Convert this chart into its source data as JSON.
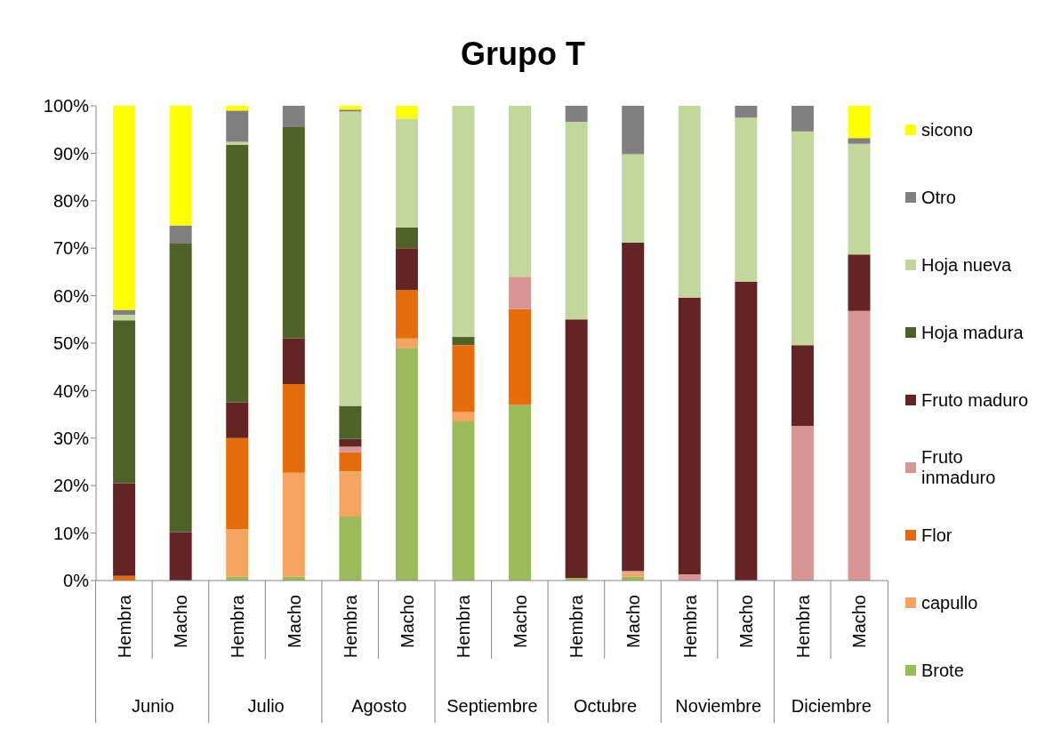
{
  "chart_data": {
    "type": "bar",
    "title": "Grupo T",
    "stacked": true,
    "legend": "right",
    "grid": false,
    "categories": [
      "Hembra",
      "Macho",
      "Hembra",
      "Macho",
      "Hembra",
      "Macho",
      "Hembra",
      "Macho",
      "Hembra",
      "Macho",
      "Hembra",
      "Macho",
      "Hembra",
      "Macho"
    ],
    "annotations": [
      "Junio",
      "Julio",
      "Agosto",
      "Septiembre",
      "Octubre",
      "Noviembre",
      "Diciembre"
    ],
    "ylim": [
      0,
      100
    ],
    "yticks": [
      {
        "value": 0,
        "label": "0%"
      },
      {
        "value": 10,
        "label": "10%"
      },
      {
        "value": 20,
        "label": "20%"
      },
      {
        "value": 30,
        "label": "30%"
      },
      {
        "value": 40,
        "label": "40%"
      },
      {
        "value": 50,
        "label": "50%"
      },
      {
        "value": 60,
        "label": "60%"
      },
      {
        "value": 70,
        "label": "70%"
      },
      {
        "value": 80,
        "label": "80%"
      },
      {
        "value": 90,
        "label": "90%"
      },
      {
        "value": 100,
        "label": "100%"
      }
    ],
    "series": [
      {
        "name": "Brote",
        "color": "#9bbb59",
        "values": [
          0,
          0,
          0.8,
          0.8,
          13.5,
          49,
          33.5,
          37,
          0.5,
          0.8,
          0,
          0,
          0,
          0
        ]
      },
      {
        "name": "capullo",
        "color": "#f4a460",
        "values": [
          0,
          0,
          10,
          21.9,
          9.5,
          2,
          2,
          0,
          0,
          0.8,
          0,
          0,
          0,
          0
        ]
      },
      {
        "name": "Flor",
        "color": "#e46c0a",
        "values": [
          1,
          0,
          19.2,
          18.7,
          4,
          10.2,
          14.1,
          20.2,
          0,
          0,
          0,
          0,
          0,
          0
        ]
      },
      {
        "name": "Fruto inmaduro",
        "color": "#d99594",
        "values": [
          0,
          0,
          0,
          0,
          1.2,
          0,
          0,
          6.8,
          0,
          0.4,
          1.3,
          0,
          32.6,
          56.8
        ]
      },
      {
        "name": "Fruto maduro",
        "color": "#632423",
        "values": [
          19.5,
          10.2,
          7.5,
          9.6,
          1.6,
          8.8,
          0,
          0,
          54.5,
          69.2,
          58.3,
          62.9,
          17,
          11.9
        ]
      },
      {
        "name": "Hoja madura",
        "color": "#4f6228",
        "values": [
          34.3,
          60.9,
          54.3,
          44.5,
          7,
          4.4,
          1.7,
          0,
          0,
          0,
          0,
          0,
          0,
          0
        ]
      },
      {
        "name": "Hoja nueva",
        "color": "#c3d69b",
        "values": [
          1.2,
          0,
          0.6,
          0,
          62,
          22.9,
          48.7,
          36,
          41.6,
          18.6,
          40.4,
          34.6,
          45,
          23.3
        ]
      },
      {
        "name": "Otro",
        "color": "#808080",
        "values": [
          1,
          3.7,
          6.6,
          4.5,
          0.4,
          0,
          0,
          0,
          3.6,
          10.2,
          0,
          2.5,
          5.4,
          1.2
        ]
      },
      {
        "name": "sicono",
        "color": "#ffff00",
        "values": [
          43,
          25.2,
          1,
          0,
          0.8,
          2.7,
          0,
          0,
          0,
          0,
          0,
          0,
          0,
          6.8
        ]
      }
    ]
  }
}
